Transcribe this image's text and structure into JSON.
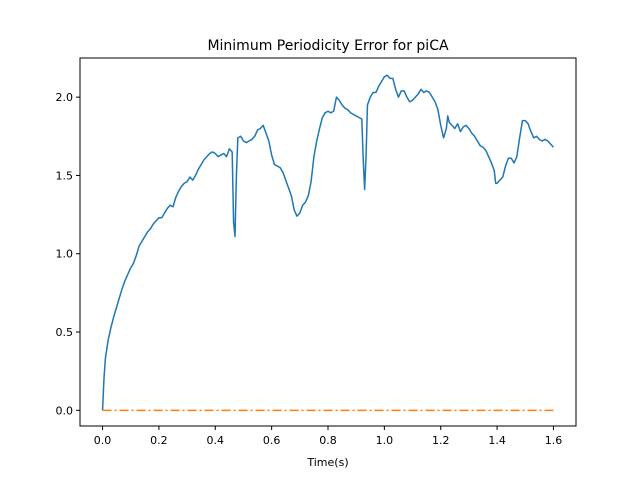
{
  "chart_data": {
    "type": "line",
    "title": "Minimum Periodicity Error for piCA",
    "xlabel": "Time(s)",
    "ylabel": "",
    "xlim": [
      -0.08,
      1.68
    ],
    "ylim": [
      -0.1,
      2.25
    ],
    "xticks": [
      "0.0",
      "0.2",
      "0.4",
      "0.6",
      "0.8",
      "1.0",
      "1.2",
      "1.4",
      "1.6"
    ],
    "yticks": [
      "0.0",
      "0.5",
      "1.0",
      "1.5",
      "2.0"
    ],
    "grid": false,
    "series": [
      {
        "color": "#1f77b4",
        "style": "solid",
        "points": [
          [
            0.0,
            0.0
          ],
          [
            0.005,
            0.2
          ],
          [
            0.01,
            0.33
          ],
          [
            0.02,
            0.45
          ],
          [
            0.03,
            0.53
          ],
          [
            0.04,
            0.6
          ],
          [
            0.05,
            0.66
          ],
          [
            0.06,
            0.72
          ],
          [
            0.07,
            0.78
          ],
          [
            0.08,
            0.83
          ],
          [
            0.09,
            0.87
          ],
          [
            0.1,
            0.91
          ],
          [
            0.11,
            0.94
          ],
          [
            0.12,
            0.99
          ],
          [
            0.13,
            1.05
          ],
          [
            0.14,
            1.08
          ],
          [
            0.15,
            1.11
          ],
          [
            0.16,
            1.14
          ],
          [
            0.17,
            1.16
          ],
          [
            0.18,
            1.19
          ],
          [
            0.19,
            1.21
          ],
          [
            0.2,
            1.23
          ],
          [
            0.21,
            1.23
          ],
          [
            0.22,
            1.26
          ],
          [
            0.23,
            1.29
          ],
          [
            0.24,
            1.31
          ],
          [
            0.25,
            1.3
          ],
          [
            0.26,
            1.36
          ],
          [
            0.27,
            1.4
          ],
          [
            0.28,
            1.43
          ],
          [
            0.29,
            1.45
          ],
          [
            0.3,
            1.46
          ],
          [
            0.31,
            1.49
          ],
          [
            0.32,
            1.47
          ],
          [
            0.33,
            1.5
          ],
          [
            0.34,
            1.54
          ],
          [
            0.35,
            1.57
          ],
          [
            0.36,
            1.6
          ],
          [
            0.37,
            1.62
          ],
          [
            0.38,
            1.64
          ],
          [
            0.39,
            1.65
          ],
          [
            0.4,
            1.64
          ],
          [
            0.41,
            1.62
          ],
          [
            0.42,
            1.63
          ],
          [
            0.43,
            1.64
          ],
          [
            0.44,
            1.62
          ],
          [
            0.45,
            1.67
          ],
          [
            0.46,
            1.65
          ],
          [
            0.465,
            1.2
          ],
          [
            0.47,
            1.11
          ],
          [
            0.475,
            1.5
          ],
          [
            0.48,
            1.74
          ],
          [
            0.49,
            1.75
          ],
          [
            0.5,
            1.72
          ],
          [
            0.51,
            1.71
          ],
          [
            0.52,
            1.72
          ],
          [
            0.53,
            1.73
          ],
          [
            0.54,
            1.75
          ],
          [
            0.55,
            1.79
          ],
          [
            0.56,
            1.8
          ],
          [
            0.57,
            1.82
          ],
          [
            0.58,
            1.77
          ],
          [
            0.59,
            1.72
          ],
          [
            0.6,
            1.63
          ],
          [
            0.61,
            1.57
          ],
          [
            0.62,
            1.56
          ],
          [
            0.63,
            1.55
          ],
          [
            0.64,
            1.52
          ],
          [
            0.65,
            1.47
          ],
          [
            0.66,
            1.42
          ],
          [
            0.67,
            1.37
          ],
          [
            0.68,
            1.28
          ],
          [
            0.69,
            1.24
          ],
          [
            0.7,
            1.26
          ],
          [
            0.71,
            1.31
          ],
          [
            0.72,
            1.33
          ],
          [
            0.73,
            1.37
          ],
          [
            0.74,
            1.46
          ],
          [
            0.75,
            1.62
          ],
          [
            0.76,
            1.72
          ],
          [
            0.77,
            1.8
          ],
          [
            0.78,
            1.87
          ],
          [
            0.79,
            1.9
          ],
          [
            0.8,
            1.91
          ],
          [
            0.81,
            1.9
          ],
          [
            0.82,
            1.91
          ],
          [
            0.83,
            2.0
          ],
          [
            0.84,
            1.98
          ],
          [
            0.85,
            1.95
          ],
          [
            0.86,
            1.93
          ],
          [
            0.87,
            1.92
          ],
          [
            0.88,
            1.9
          ],
          [
            0.89,
            1.89
          ],
          [
            0.9,
            1.88
          ],
          [
            0.91,
            1.87
          ],
          [
            0.92,
            1.86
          ],
          [
            0.925,
            1.6
          ],
          [
            0.93,
            1.41
          ],
          [
            0.935,
            1.62
          ],
          [
            0.94,
            1.95
          ],
          [
            0.95,
            2.0
          ],
          [
            0.96,
            2.03
          ],
          [
            0.97,
            2.03
          ],
          [
            0.98,
            2.07
          ],
          [
            0.99,
            2.1
          ],
          [
            1.0,
            2.13
          ],
          [
            1.01,
            2.14
          ],
          [
            1.02,
            2.12
          ],
          [
            1.03,
            2.12
          ],
          [
            1.04,
            2.05
          ],
          [
            1.05,
            2.0
          ],
          [
            1.06,
            2.04
          ],
          [
            1.07,
            2.04
          ],
          [
            1.08,
            2.0
          ],
          [
            1.09,
            1.97
          ],
          [
            1.1,
            1.98
          ],
          [
            1.11,
            2.0
          ],
          [
            1.12,
            2.02
          ],
          [
            1.13,
            2.05
          ],
          [
            1.14,
            2.03
          ],
          [
            1.15,
            2.04
          ],
          [
            1.16,
            2.03
          ],
          [
            1.17,
            2.0
          ],
          [
            1.18,
            1.97
          ],
          [
            1.19,
            1.92
          ],
          [
            1.2,
            1.82
          ],
          [
            1.21,
            1.74
          ],
          [
            1.22,
            1.8
          ],
          [
            1.225,
            1.88
          ],
          [
            1.23,
            1.84
          ],
          [
            1.24,
            1.82
          ],
          [
            1.25,
            1.8
          ],
          [
            1.26,
            1.83
          ],
          [
            1.27,
            1.78
          ],
          [
            1.28,
            1.81
          ],
          [
            1.29,
            1.82
          ],
          [
            1.3,
            1.8
          ],
          [
            1.31,
            1.77
          ],
          [
            1.32,
            1.75
          ],
          [
            1.33,
            1.72
          ],
          [
            1.34,
            1.69
          ],
          [
            1.35,
            1.68
          ],
          [
            1.36,
            1.66
          ],
          [
            1.37,
            1.62
          ],
          [
            1.38,
            1.58
          ],
          [
            1.39,
            1.53
          ],
          [
            1.395,
            1.45
          ],
          [
            1.4,
            1.45
          ],
          [
            1.41,
            1.47
          ],
          [
            1.42,
            1.49
          ],
          [
            1.43,
            1.56
          ],
          [
            1.44,
            1.61
          ],
          [
            1.45,
            1.61
          ],
          [
            1.46,
            1.58
          ],
          [
            1.47,
            1.62
          ],
          [
            1.48,
            1.74
          ],
          [
            1.49,
            1.85
          ],
          [
            1.5,
            1.85
          ],
          [
            1.51,
            1.83
          ],
          [
            1.52,
            1.78
          ],
          [
            1.53,
            1.74
          ],
          [
            1.54,
            1.75
          ],
          [
            1.55,
            1.73
          ],
          [
            1.56,
            1.72
          ],
          [
            1.57,
            1.73
          ],
          [
            1.58,
            1.72
          ],
          [
            1.59,
            1.7
          ],
          [
            1.6,
            1.68
          ]
        ]
      },
      {
        "color": "#ff7f0e",
        "style": "dashdot",
        "points": [
          [
            0.0,
            0.0
          ],
          [
            1.6,
            0.0
          ]
        ]
      }
    ]
  }
}
